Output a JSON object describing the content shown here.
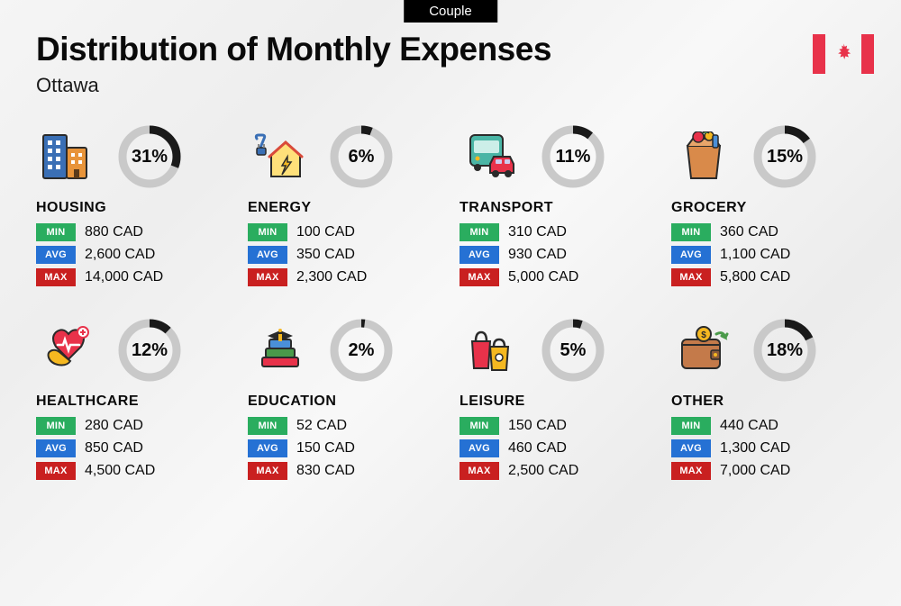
{
  "badge": "Couple",
  "title": "Distribution of Monthly Expenses",
  "subtitle": "Ottawa",
  "labels": {
    "min": "MIN",
    "avg": "AVG",
    "max": "MAX"
  },
  "colors": {
    "min_bg": "#2aad5f",
    "avg_bg": "#2571d4",
    "max_bg": "#c92020",
    "donut_fg": "#1a1a1a",
    "donut_bg": "#c9c9c9",
    "flag": "#e8324a"
  },
  "categories": [
    {
      "name": "HOUSING",
      "pct": 31,
      "pct_label": "31%",
      "min": "880 CAD",
      "avg": "2,600 CAD",
      "max": "14,000 CAD",
      "icon": "housing"
    },
    {
      "name": "ENERGY",
      "pct": 6,
      "pct_label": "6%",
      "min": "100 CAD",
      "avg": "350 CAD",
      "max": "2,300 CAD",
      "icon": "energy"
    },
    {
      "name": "TRANSPORT",
      "pct": 11,
      "pct_label": "11%",
      "min": "310 CAD",
      "avg": "930 CAD",
      "max": "5,000 CAD",
      "icon": "transport"
    },
    {
      "name": "GROCERY",
      "pct": 15,
      "pct_label": "15%",
      "min": "360 CAD",
      "avg": "1,100 CAD",
      "max": "5,800 CAD",
      "icon": "grocery"
    },
    {
      "name": "HEALTHCARE",
      "pct": 12,
      "pct_label": "12%",
      "min": "280 CAD",
      "avg": "850 CAD",
      "max": "4,500 CAD",
      "icon": "healthcare"
    },
    {
      "name": "EDUCATION",
      "pct": 2,
      "pct_label": "2%",
      "min": "52 CAD",
      "avg": "150 CAD",
      "max": "830 CAD",
      "icon": "education"
    },
    {
      "name": "LEISURE",
      "pct": 5,
      "pct_label": "5%",
      "min": "150 CAD",
      "avg": "460 CAD",
      "max": "2,500 CAD",
      "icon": "leisure"
    },
    {
      "name": "OTHER",
      "pct": 18,
      "pct_label": "18%",
      "min": "440 CAD",
      "avg": "1,300 CAD",
      "max": "7,000 CAD",
      "icon": "other"
    }
  ]
}
